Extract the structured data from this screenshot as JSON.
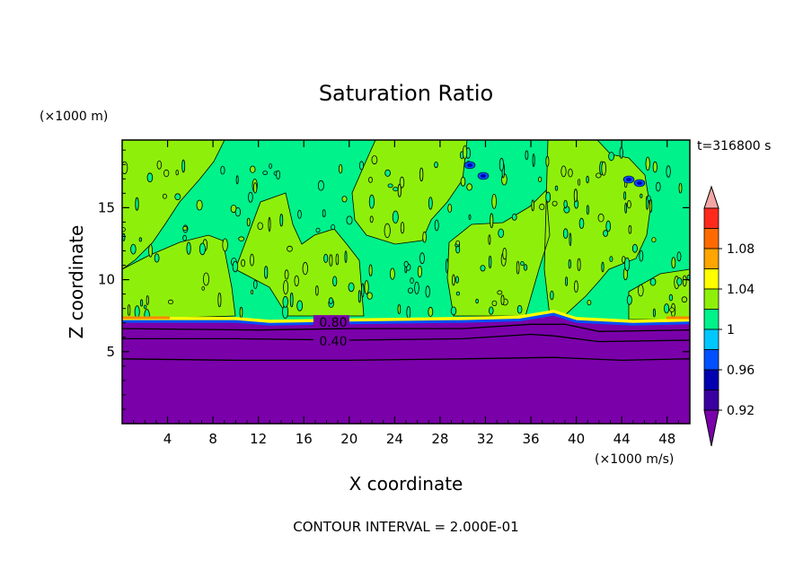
{
  "chart_data": {
    "type": "heatmap",
    "title": "Saturation Ratio",
    "xlabel": "X coordinate",
    "ylabel": "Z coordinate",
    "x_unit": "(×1000 m/s)",
    "y_unit": "(×1000 m)",
    "time_label": "t=316800 s",
    "footer": "CONTOUR INTERVAL = 2.000E-01",
    "xlim": [
      0,
      50
    ],
    "ylim": [
      0,
      19.7
    ],
    "x_ticks": [
      4,
      8,
      12,
      16,
      20,
      24,
      28,
      32,
      36,
      40,
      44,
      48
    ],
    "y_ticks": [
      5,
      10,
      15
    ],
    "contour_labels": [
      {
        "text": "0.80",
        "value": 0.8,
        "x": 17,
        "y": 7.1
      },
      {
        "text": "0.40",
        "value": 0.4,
        "x": 17,
        "y": 5.8
      }
    ],
    "contour_lines": [
      {
        "value": 0.8,
        "points": [
          [
            0,
            7.1
          ],
          [
            10,
            7.1
          ],
          [
            13,
            6.9
          ],
          [
            20,
            7.0
          ],
          [
            30,
            7.1
          ],
          [
            35,
            7.2
          ],
          [
            38,
            7.6
          ],
          [
            40,
            7.1
          ],
          [
            45,
            6.9
          ],
          [
            50,
            7.0
          ]
        ]
      },
      {
        "value": 0.6,
        "points": [
          [
            0,
            6.6
          ],
          [
            12,
            6.5
          ],
          [
            20,
            6.6
          ],
          [
            30,
            6.6
          ],
          [
            36,
            6.9
          ],
          [
            39,
            6.9
          ],
          [
            42,
            6.4
          ],
          [
            50,
            6.5
          ]
        ]
      },
      {
        "value": 0.4,
        "points": [
          [
            0,
            5.9
          ],
          [
            10,
            5.9
          ],
          [
            20,
            5.8
          ],
          [
            30,
            5.9
          ],
          [
            36,
            6.2
          ],
          [
            38,
            6.1
          ],
          [
            42,
            5.7
          ],
          [
            50,
            5.8
          ]
        ]
      },
      {
        "value": 0.2,
        "points": [
          [
            0,
            4.5
          ],
          [
            10,
            4.4
          ],
          [
            20,
            4.4
          ],
          [
            30,
            4.5
          ],
          [
            38,
            4.6
          ],
          [
            44,
            4.4
          ],
          [
            50,
            4.5
          ]
        ]
      }
    ],
    "colorbar": {
      "labels": [
        "1.08",
        "1.04",
        "1",
        "0.96",
        "0.92"
      ],
      "bands": [
        {
          "color": "#f4a6a6"
        },
        {
          "color": "#ff2a1e"
        },
        {
          "color": "#ff6a00"
        },
        {
          "color": "#ffa500"
        },
        {
          "color": "#ffff00"
        },
        {
          "color": "#8ef00a"
        },
        {
          "color": "#00f28a"
        },
        {
          "color": "#00c8ff"
        },
        {
          "color": "#0050ff"
        },
        {
          "color": "#0000b0"
        },
        {
          "color": "#3a00a0"
        },
        {
          "color": "#7a00aa"
        }
      ]
    },
    "fields": {
      "dry_color": "#7a00aa",
      "cloud_green_color": "#8ef00a",
      "cloud_teal_color": "#00f28a",
      "edge_yellow_color": "#ffff00",
      "edge_orange_color": "#ff8800"
    }
  }
}
